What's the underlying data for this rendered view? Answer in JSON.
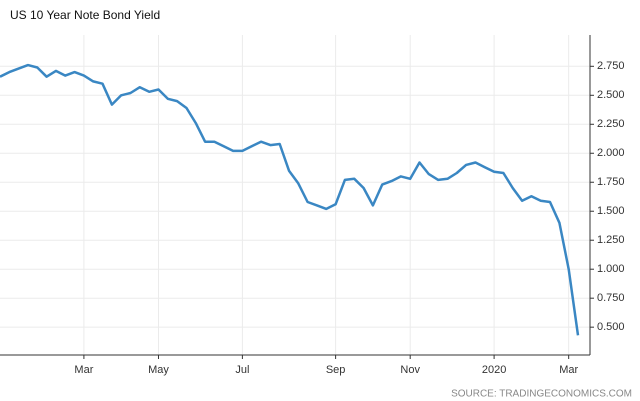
{
  "chart_data": {
    "type": "line",
    "title": "US 10 Year Note Bond Yield",
    "source": "SOURCE: TRADINGECONOMICS.COM",
    "categories": [
      null,
      null,
      null,
      null,
      null,
      null,
      null,
      null,
      null,
      "Mar",
      null,
      null,
      null,
      null,
      null,
      null,
      null,
      "May",
      null,
      null,
      null,
      null,
      null,
      null,
      null,
      null,
      "Jul",
      null,
      null,
      null,
      null,
      null,
      null,
      null,
      null,
      null,
      "Sep",
      null,
      null,
      null,
      null,
      null,
      null,
      null,
      "Nov",
      null,
      null,
      null,
      null,
      null,
      null,
      null,
      null,
      "2020",
      null,
      null,
      null,
      null,
      null,
      null,
      null,
      "Mar",
      null
    ],
    "series": [
      {
        "name": "US 10 Year Note Bond Yield",
        "color": "#3a87c3",
        "values": [
          2.66,
          2.7,
          2.73,
          2.76,
          2.74,
          2.66,
          2.71,
          2.67,
          2.7,
          2.67,
          2.62,
          2.6,
          2.42,
          2.5,
          2.52,
          2.57,
          2.53,
          2.55,
          2.47,
          2.45,
          2.39,
          2.26,
          2.1,
          2.1,
          2.06,
          2.02,
          2.02,
          2.06,
          2.1,
          2.07,
          2.08,
          1.85,
          1.74,
          1.58,
          1.55,
          1.52,
          1.56,
          1.77,
          1.78,
          1.7,
          1.55,
          1.73,
          1.76,
          1.8,
          1.78,
          1.92,
          1.82,
          1.77,
          1.78,
          1.83,
          1.9,
          1.92,
          1.88,
          1.84,
          1.83,
          1.7,
          1.59,
          1.63,
          1.59,
          1.58,
          1.4,
          1.0,
          0.43
        ]
      }
    ],
    "ylim": [
      0.26,
      3.02
    ],
    "yticks": [
      {
        "value": 0.5,
        "label": "0.500"
      },
      {
        "value": 0.75,
        "label": "0.750"
      },
      {
        "value": 1,
        "label": "1.000"
      },
      {
        "value": 1.25,
        "label": "1.250"
      },
      {
        "value": 1.5,
        "label": "1.500"
      },
      {
        "value": 1.75,
        "label": "1.750"
      },
      {
        "value": 2,
        "label": "2.000"
      },
      {
        "value": 2.25,
        "label": "2.250"
      },
      {
        "value": 2.5,
        "label": "2.500"
      },
      {
        "value": 2.75,
        "label": "2.750"
      }
    ],
    "grid": true
  }
}
